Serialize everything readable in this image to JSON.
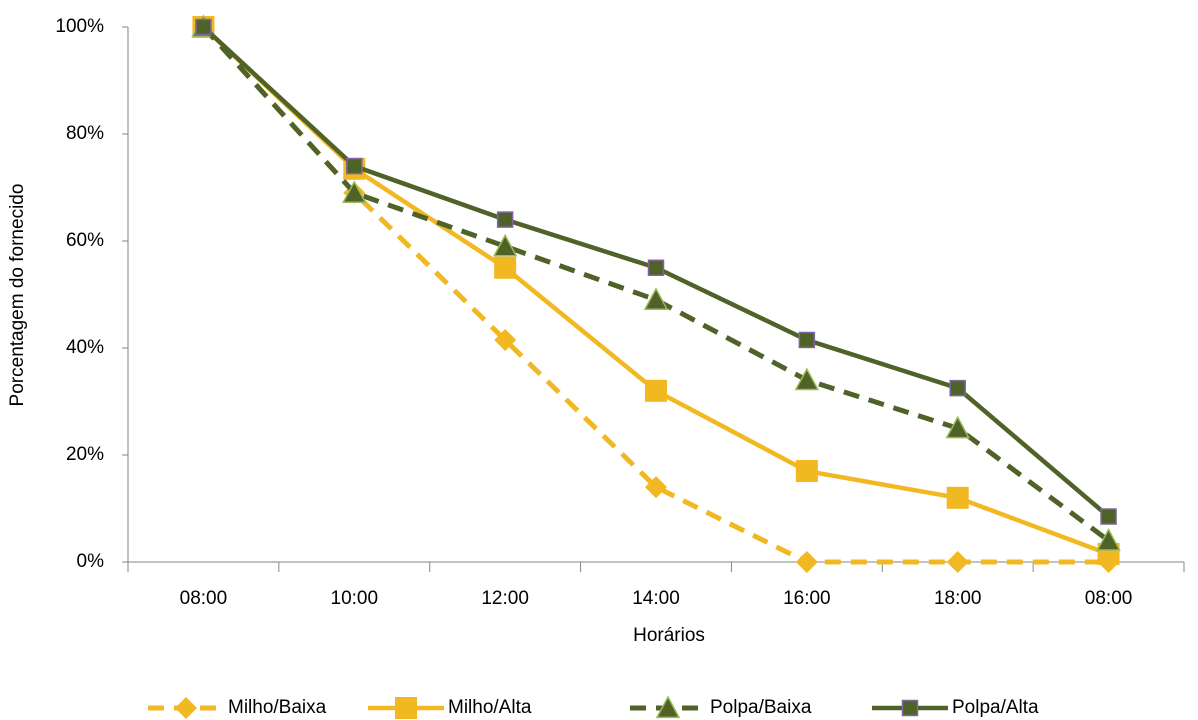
{
  "chart_data": {
    "type": "line",
    "x_label": "Horários",
    "y_label": "Porcentagem do fornecido",
    "categories": [
      "08:00",
      "10:00",
      "12:00",
      "14:00",
      "16:00",
      "18:00",
      "08:00"
    ],
    "ylim": [
      0,
      100
    ],
    "yticks": [
      {
        "value": 0,
        "label": "0%"
      },
      {
        "value": 20,
        "label": "20%"
      },
      {
        "value": 40,
        "label": "40%"
      },
      {
        "value": 60,
        "label": "60%"
      },
      {
        "value": 80,
        "label": "80%"
      },
      {
        "value": 100,
        "label": "100%"
      }
    ],
    "grid": false,
    "legend": "bottom",
    "series": [
      {
        "name": "Milho/Baixa",
        "color": "#f2b822",
        "dash": true,
        "marker": "diamond",
        "values": [
          100,
          69,
          41.5,
          14,
          0,
          0,
          0
        ]
      },
      {
        "name": "Milho/Alta",
        "color": "#f2b822",
        "dash": false,
        "marker": "square",
        "values": [
          100,
          73.5,
          55,
          32,
          17,
          12,
          1.5
        ]
      },
      {
        "name": "Polpa/Baixa",
        "color": "#4f6228",
        "dash": true,
        "marker": "triangle",
        "values": [
          100,
          69,
          59,
          49,
          34,
          25,
          4
        ]
      },
      {
        "name": "Polpa/Alta",
        "color": "#4f6228",
        "dash": false,
        "marker": "square-outlined",
        "values": [
          100,
          74,
          64,
          55,
          41.5,
          32.5,
          8.5
        ]
      }
    ]
  }
}
